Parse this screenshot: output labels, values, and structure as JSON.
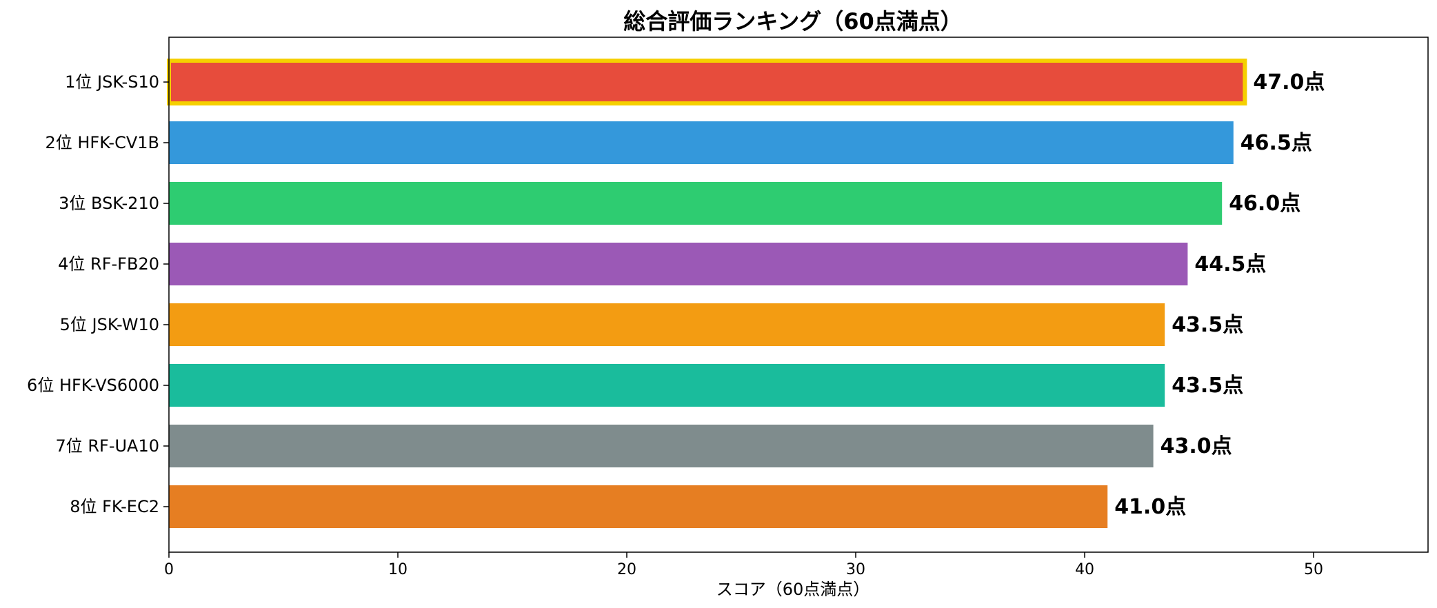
{
  "chart_data": {
    "type": "bar",
    "orientation": "horizontal",
    "title": "総合評価ランキング（60点満点）",
    "xlabel": "スコア（60点満点）",
    "ylabel": "",
    "xlim": [
      0,
      55
    ],
    "xticks": [
      0,
      10,
      20,
      30,
      40,
      50
    ],
    "grid": false,
    "categories": [
      "1位 JSK-S10",
      "2位 HFK-CV1B",
      "3位 BSK-210",
      "4位 RF-FB20",
      "5位 JSK-W10",
      "6位 HFK-VS6000",
      "7位 RF-UA10",
      "8位 FK-EC2"
    ],
    "values": [
      47.0,
      46.5,
      46.0,
      44.5,
      43.5,
      43.5,
      43.0,
      41.0
    ],
    "value_labels": [
      "47.0点",
      "46.5点",
      "46.0点",
      "44.5点",
      "43.5点",
      "43.5点",
      "43.0点",
      "41.0点"
    ],
    "colors": [
      "#e74c3c",
      "#3498db",
      "#2ecc71",
      "#9b59b6",
      "#f39c12",
      "#1abc9c",
      "#7f8c8d",
      "#e67e22"
    ],
    "highlight": {
      "index": 0,
      "outline_color": "#f5d000"
    }
  }
}
